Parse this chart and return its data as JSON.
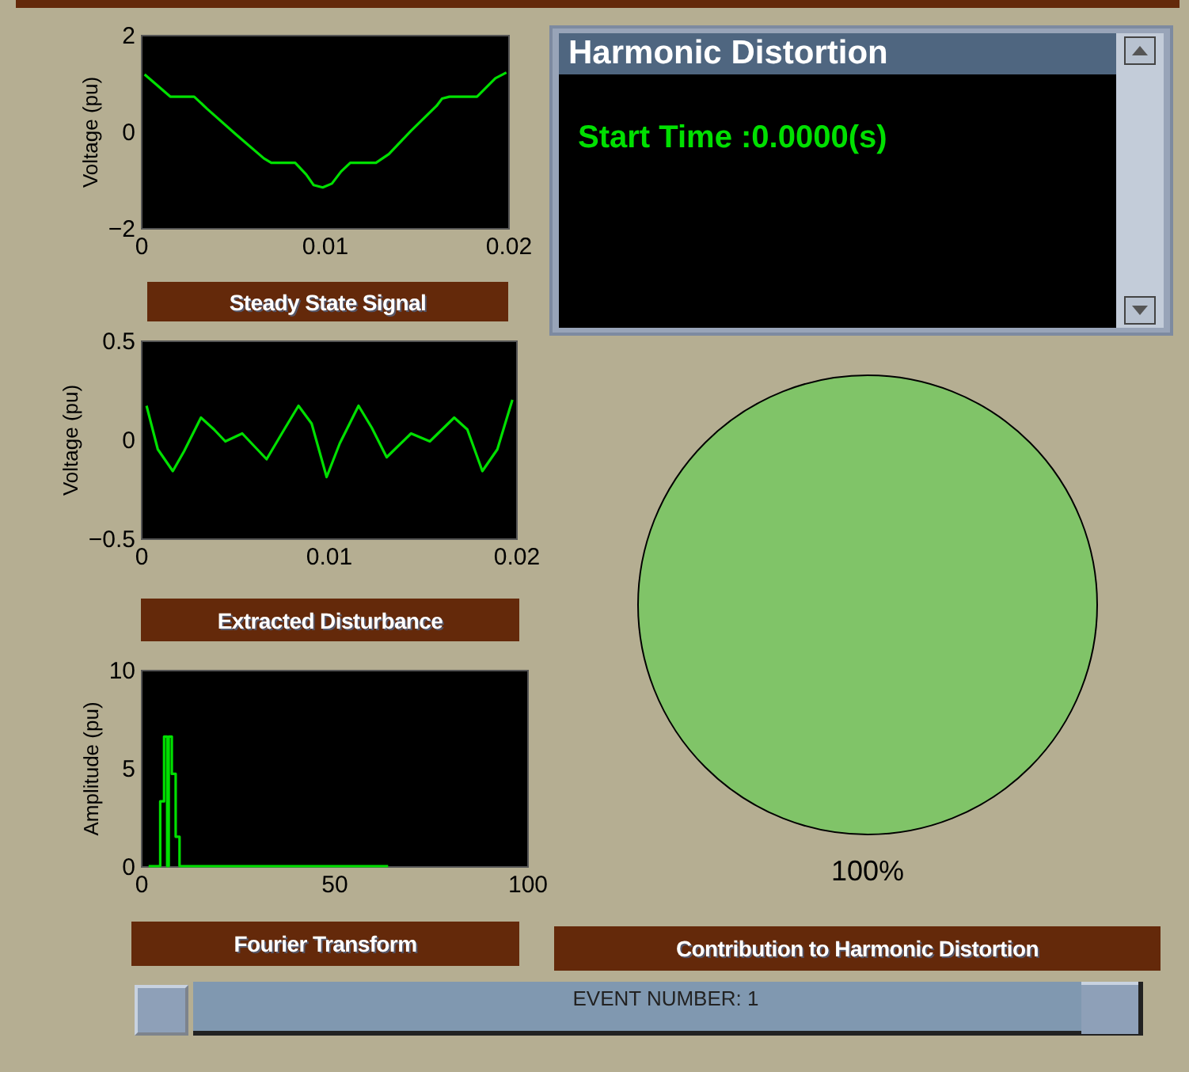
{
  "chart_data": [
    {
      "type": "line",
      "title": "Steady State Signal",
      "ylabel": "Voltage (pu)",
      "x": [
        0.0002,
        0.0016,
        0.0029,
        0.0036,
        0.0052,
        0.0067,
        0.0071,
        0.0084,
        0.009,
        0.0094,
        0.0099,
        0.0104,
        0.0109,
        0.0114,
        0.0128,
        0.0135,
        0.0147,
        0.0161,
        0.0164,
        0.0168,
        0.0183,
        0.0193,
        0.0199
      ],
      "series": [
        {
          "color": "#00e000",
          "values": [
            1.18,
            0.72,
            0.72,
            0.47,
            -0.07,
            -0.56,
            -0.65,
            -0.65,
            -0.89,
            -1.11,
            -1.16,
            -1.08,
            -0.83,
            -0.65,
            -0.65,
            -0.47,
            0.01,
            0.53,
            0.68,
            0.72,
            0.72,
            1.1,
            1.22
          ]
        }
      ],
      "xlim": [
        0,
        0.02
      ],
      "xticks": [
        0,
        0.01,
        0.02
      ],
      "ylim": [
        -2,
        2
      ],
      "yticks": [
        -2,
        0,
        2
      ]
    },
    {
      "type": "other",
      "title": "Harmonic Distortion",
      "annotations": [
        "Start Time :0.0000(s)"
      ]
    },
    {
      "type": "line",
      "title": "Extracted Disturbance",
      "ylabel": "Voltage (pu)",
      "x": [
        0.0003,
        0.0009,
        0.0017,
        0.0023,
        0.0032,
        0.0039,
        0.0045,
        0.0054,
        0.0067,
        0.0077,
        0.0084,
        0.0091,
        0.0099,
        0.0106,
        0.0116,
        0.0123,
        0.0131,
        0.0144,
        0.0154,
        0.0167,
        0.0174,
        0.0182,
        0.019,
        0.0198
      ],
      "series": [
        {
          "color": "#00e000",
          "values": [
            0.17,
            -0.05,
            -0.16,
            -0.06,
            0.11,
            0.05,
            -0.01,
            0.03,
            -0.1,
            0.06,
            0.17,
            0.08,
            -0.19,
            -0.02,
            0.17,
            0.06,
            -0.09,
            0.03,
            -0.01,
            0.11,
            0.05,
            -0.16,
            -0.05,
            0.2
          ]
        }
      ],
      "xlim": [
        0,
        0.02
      ],
      "xticks": [
        0,
        0.01,
        0.02
      ],
      "ylim": [
        -0.5,
        0.5
      ],
      "yticks": [
        -0.5,
        0,
        0.5
      ]
    },
    {
      "type": "pie",
      "title": "Contribution to Harmonic Distortion",
      "categories": [
        null
      ],
      "values": [
        100
      ],
      "colors": [
        "#80c468"
      ],
      "value_labels": [
        "100%"
      ]
    },
    {
      "type": "step",
      "title": "Fourier Transform",
      "ylabel": "Amplitude (pu)",
      "x": [
        2,
        4,
        5,
        6,
        6.8,
        7.2,
        8,
        9,
        10,
        64
      ],
      "series": [
        {
          "color": "#00e000",
          "values": [
            0,
            0,
            3.3,
            6.6,
            0,
            6.6,
            4.7,
            1.5,
            0,
            0
          ]
        }
      ],
      "xlim": [
        0,
        100
      ],
      "xticks": [
        0,
        50,
        100
      ],
      "ylim": [
        0,
        10
      ],
      "yticks": [
        0,
        5,
        10
      ]
    },
    {
      "type": "other",
      "annotations": [
        "EVENT NUMBER: 1"
      ]
    }
  ]
}
